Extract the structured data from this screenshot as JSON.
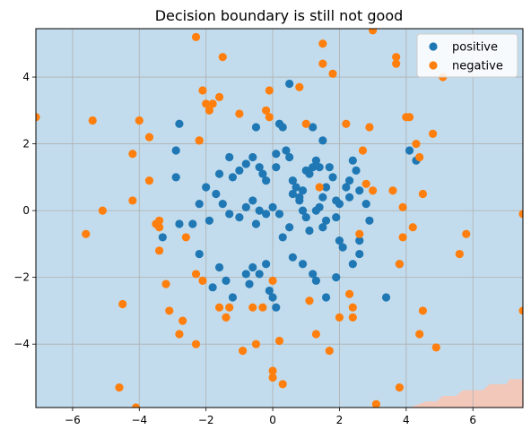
{
  "chart_data": {
    "type": "scatter",
    "title": "Decision boundary is still not good",
    "xlabel": "",
    "ylabel": "",
    "xlim": [
      -7.1,
      7.5
    ],
    "ylim": [
      -5.9,
      5.45
    ],
    "xticks": [
      -6,
      -4,
      -2,
      0,
      2,
      4,
      6
    ],
    "yticks": [
      -4,
      -2,
      0,
      2,
      4
    ],
    "grid": true,
    "legend_position": "top-right",
    "background_region_color": "#c2dced",
    "boundary_region_color": "#f2c8bb",
    "decision_boundary": [
      [
        4.1,
        -5.9
      ],
      [
        4.6,
        -5.72
      ],
      [
        4.9,
        -5.72
      ],
      [
        5.1,
        -5.55
      ],
      [
        5.5,
        -5.55
      ],
      [
        5.7,
        -5.38
      ],
      [
        6.3,
        -5.38
      ],
      [
        6.5,
        -5.2
      ],
      [
        7.0,
        -5.2
      ],
      [
        7.1,
        -5.05
      ],
      [
        7.5,
        -5.05
      ],
      [
        7.5,
        -5.9
      ]
    ],
    "series": [
      {
        "name": "positive",
        "color": "#1f77b4",
        "points": [
          [
            -1.8,
            -2.3
          ],
          [
            -1.6,
            -1.7
          ],
          [
            -1.4,
            -2.1
          ],
          [
            -1.2,
            -2.6
          ],
          [
            -0.8,
            -1.9
          ],
          [
            -0.6,
            -1.7
          ],
          [
            -0.4,
            -1.9
          ],
          [
            -0.2,
            -1.6
          ],
          [
            -0.1,
            -2.4
          ],
          [
            0.0,
            -2.6
          ],
          [
            0.1,
            -2.9
          ],
          [
            0.6,
            -1.4
          ],
          [
            0.9,
            -1.6
          ],
          [
            1.2,
            -1.9
          ],
          [
            1.3,
            -2.1
          ],
          [
            1.6,
            -2.6
          ],
          [
            1.9,
            -2.0
          ],
          [
            2.1,
            -1.1
          ],
          [
            2.4,
            -1.6
          ],
          [
            2.6,
            -1.3
          ],
          [
            3.4,
            -2.6
          ],
          [
            3.8,
            -1.6
          ],
          [
            4.1,
            1.8
          ],
          [
            4.3,
            1.5
          ],
          [
            2.6,
            0.6
          ],
          [
            2.8,
            0.2
          ],
          [
            2.9,
            -0.3
          ],
          [
            2.5,
            1.2
          ],
          [
            2.4,
            1.5
          ],
          [
            2.3,
            0.4
          ],
          [
            2.0,
            0.2
          ],
          [
            1.9,
            -0.2
          ],
          [
            1.6,
            -0.3
          ],
          [
            1.5,
            -0.5
          ],
          [
            1.4,
            0.1
          ],
          [
            1.3,
            0.0
          ],
          [
            1.1,
            -0.6
          ],
          [
            1.0,
            -0.2
          ],
          [
            0.9,
            0.0
          ],
          [
            0.8,
            0.3
          ],
          [
            0.6,
            0.5
          ],
          [
            0.5,
            -0.5
          ],
          [
            0.3,
            -0.8
          ],
          [
            0.2,
            -0.1
          ],
          [
            0.0,
            0.1
          ],
          [
            -0.2,
            -0.1
          ],
          [
            -0.4,
            0.0
          ],
          [
            -0.5,
            -0.4
          ],
          [
            -0.6,
            0.3
          ],
          [
            -0.8,
            0.1
          ],
          [
            -1.0,
            -0.2
          ],
          [
            -1.3,
            -0.1
          ],
          [
            -1.5,
            0.2
          ],
          [
            -1.7,
            0.5
          ],
          [
            -2.0,
            0.7
          ],
          [
            -2.2,
            0.2
          ],
          [
            -2.4,
            -0.4
          ],
          [
            -2.8,
            -0.4
          ],
          [
            -3.3,
            -0.8
          ],
          [
            -2.9,
            1.0
          ],
          [
            -2.9,
            1.8
          ],
          [
            -2.8,
            2.6
          ],
          [
            -2.2,
            -1.3
          ],
          [
            -1.9,
            -0.3
          ],
          [
            -1.6,
            1.1
          ],
          [
            -1.3,
            1.6
          ],
          [
            -1.2,
            1.0
          ],
          [
            -1.0,
            1.2
          ],
          [
            -0.8,
            1.4
          ],
          [
            -0.6,
            1.6
          ],
          [
            -0.5,
            2.5
          ],
          [
            -0.4,
            1.3
          ],
          [
            -0.3,
            1.1
          ],
          [
            -0.2,
            0.9
          ],
          [
            0.1,
            1.3
          ],
          [
            0.1,
            1.7
          ],
          [
            0.2,
            2.6
          ],
          [
            0.3,
            2.5
          ],
          [
            0.4,
            1.8
          ],
          [
            0.5,
            1.6
          ],
          [
            0.6,
            0.9
          ],
          [
            0.7,
            0.7
          ],
          [
            0.8,
            0.4
          ],
          [
            0.9,
            0.6
          ],
          [
            1.0,
            1.2
          ],
          [
            1.1,
            1.1
          ],
          [
            1.2,
            1.3
          ],
          [
            1.3,
            1.5
          ],
          [
            1.4,
            1.3
          ],
          [
            1.5,
            0.4
          ],
          [
            1.6,
            0.7
          ],
          [
            1.7,
            1.3
          ],
          [
            1.8,
            1.0
          ],
          [
            1.9,
            0.3
          ],
          [
            2.2,
            0.7
          ],
          [
            2.3,
            0.9
          ],
          [
            1.5,
            2.1
          ],
          [
            1.2,
            2.5
          ],
          [
            0.5,
            3.8
          ],
          [
            -0.7,
            -2.2
          ],
          [
            2.6,
            -0.9
          ],
          [
            2.0,
            -0.9
          ]
        ]
      },
      {
        "name": "negative",
        "color": "#ff7f0e",
        "points": [
          [
            -7.1,
            2.8
          ],
          [
            -5.4,
            2.7
          ],
          [
            -5.6,
            -0.7
          ],
          [
            -5.1,
            0.0
          ],
          [
            -4.5,
            -2.8
          ],
          [
            -4.6,
            -5.3
          ],
          [
            -4.2,
            1.7
          ],
          [
            -4.0,
            2.7
          ],
          [
            -4.2,
            0.3
          ],
          [
            -4.1,
            -5.9
          ],
          [
            -3.7,
            2.2
          ],
          [
            -3.7,
            0.9
          ],
          [
            -3.4,
            -0.3
          ],
          [
            -3.5,
            -0.4
          ],
          [
            -3.4,
            -0.5
          ],
          [
            -3.4,
            -1.2
          ],
          [
            -3.2,
            -2.2
          ],
          [
            -3.1,
            -3.0
          ],
          [
            -2.8,
            -3.7
          ],
          [
            -2.7,
            -3.3
          ],
          [
            -2.6,
            -0.8
          ],
          [
            -2.3,
            -4.0
          ],
          [
            -2.3,
            -1.9
          ],
          [
            -2.2,
            2.1
          ],
          [
            -2.1,
            -2.1
          ],
          [
            -2.1,
            3.6
          ],
          [
            -2.0,
            3.2
          ],
          [
            -1.9,
            3.0
          ],
          [
            -1.8,
            3.2
          ],
          [
            -1.6,
            3.4
          ],
          [
            -1.5,
            4.6
          ],
          [
            -1.6,
            -2.9
          ],
          [
            -1.3,
            -2.9
          ],
          [
            -1.4,
            -3.2
          ],
          [
            -1.0,
            2.9
          ],
          [
            -0.6,
            -2.9
          ],
          [
            -0.5,
            -4.0
          ],
          [
            -0.3,
            -2.9
          ],
          [
            -0.2,
            3.0
          ],
          [
            -0.1,
            3.6
          ],
          [
            -0.1,
            2.8
          ],
          [
            0.0,
            -2.1
          ],
          [
            0.0,
            -4.8
          ],
          [
            0.0,
            -5.0
          ],
          [
            0.2,
            -3.9
          ],
          [
            0.3,
            -5.2
          ],
          [
            0.8,
            3.7
          ],
          [
            1.1,
            -2.7
          ],
          [
            1.0,
            2.6
          ],
          [
            1.3,
            -3.7
          ],
          [
            1.4,
            0.7
          ],
          [
            1.5,
            4.4
          ],
          [
            1.5,
            5.0
          ],
          [
            1.7,
            -4.2
          ],
          [
            1.8,
            4.1
          ],
          [
            2.0,
            -3.2
          ],
          [
            2.2,
            2.6
          ],
          [
            2.3,
            -2.5
          ],
          [
            2.4,
            -3.2
          ],
          [
            2.4,
            -2.9
          ],
          [
            2.6,
            -0.7
          ],
          [
            2.7,
            1.8
          ],
          [
            2.8,
            0.8
          ],
          [
            2.9,
            2.5
          ],
          [
            3.0,
            0.6
          ],
          [
            3.0,
            5.4
          ],
          [
            3.1,
            -5.8
          ],
          [
            3.6,
            0.6
          ],
          [
            3.7,
            4.6
          ],
          [
            3.7,
            4.4
          ],
          [
            3.8,
            -1.6
          ],
          [
            3.8,
            -5.3
          ],
          [
            3.9,
            0.1
          ],
          [
            3.9,
            -0.8
          ],
          [
            4.0,
            2.8
          ],
          [
            4.1,
            2.8
          ],
          [
            4.2,
            -0.5
          ],
          [
            4.3,
            2.0
          ],
          [
            4.4,
            1.6
          ],
          [
            4.4,
            -3.7
          ],
          [
            4.5,
            0.5
          ],
          [
            4.5,
            -3.0
          ],
          [
            4.8,
            2.3
          ],
          [
            4.9,
            -4.1
          ],
          [
            5.1,
            4.0
          ],
          [
            5.6,
            -1.3
          ],
          [
            5.8,
            -0.7
          ],
          [
            7.5,
            -0.1
          ],
          [
            7.5,
            -3.0
          ],
          [
            -2.3,
            5.2
          ],
          [
            -0.9,
            -4.2
          ],
          [
            -2.2,
            2.1
          ]
        ]
      }
    ]
  }
}
